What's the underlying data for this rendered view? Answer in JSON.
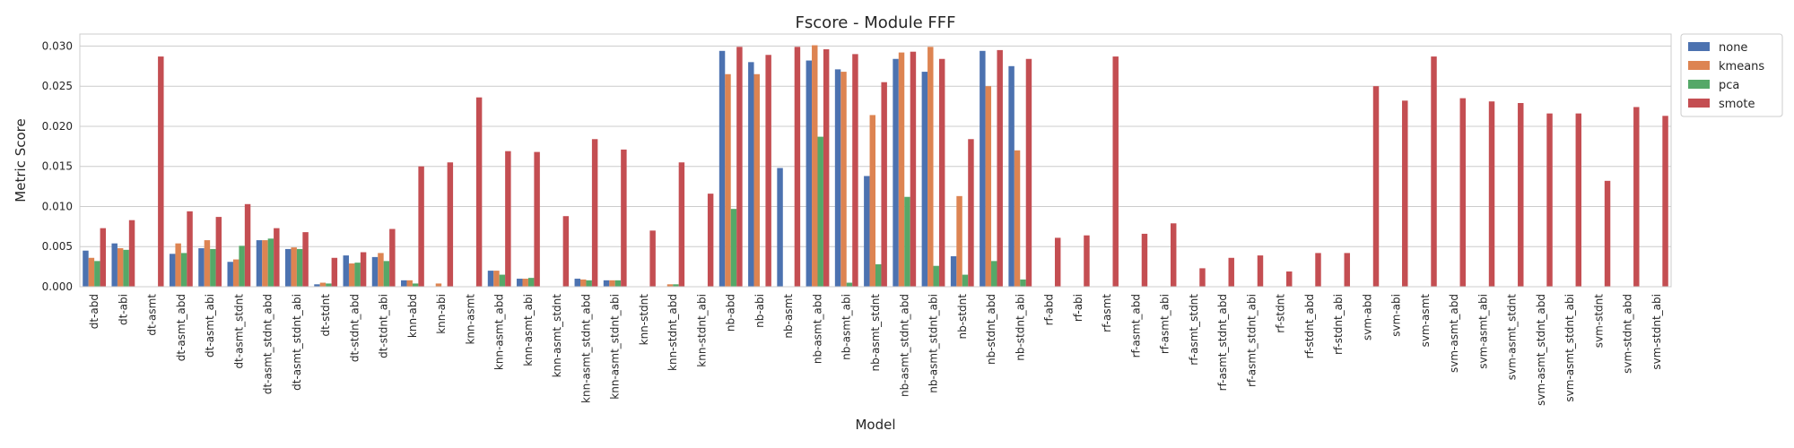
{
  "chart_data": {
    "type": "bar",
    "title": "Fscore - Module FFF",
    "xlabel": "Model",
    "ylabel": "Metric Score",
    "ylim": [
      0,
      0.0315
    ],
    "yticks": [
      0.0,
      0.005,
      0.01,
      0.015,
      0.02,
      0.025,
      0.03
    ],
    "ytick_labels": [
      "0.000",
      "0.005",
      "0.010",
      "0.015",
      "0.020",
      "0.025",
      "0.030"
    ],
    "grid": true,
    "legend_position": "outside-top-right",
    "categories": [
      "dt-abd",
      "dt-abi",
      "dt-asmt",
      "dt-asmt_abd",
      "dt-asmt_abi",
      "dt-asmt_stdnt",
      "dt-asmt_stdnt_abd",
      "dt-asmt_stdnt_abi",
      "dt-stdnt",
      "dt-stdnt_abd",
      "dt-stdnt_abi",
      "knn-abd",
      "knn-abi",
      "knn-asmt",
      "knn-asmt_abd",
      "knn-asmt_abi",
      "knn-asmt_stdnt",
      "knn-asmt_stdnt_abd",
      "knn-asmt_stdnt_abi",
      "knn-stdnt",
      "knn-stdnt_abd",
      "knn-stdnt_abi",
      "nb-abd",
      "nb-abi",
      "nb-asmt",
      "nb-asmt_abd",
      "nb-asmt_abi",
      "nb-asmt_stdnt",
      "nb-asmt_stdnt_abd",
      "nb-asmt_stdnt_abi",
      "nb-stdnt",
      "nb-stdnt_abd",
      "nb-stdnt_abi",
      "rf-abd",
      "rf-abi",
      "rf-asmt",
      "rf-asmt_abd",
      "rf-asmt_abi",
      "rf-asmt_stdnt",
      "rf-asmt_stdnt_abd",
      "rf-asmt_stdnt_abi",
      "rf-stdnt",
      "rf-stdnt_abd",
      "rf-stdnt_abi",
      "svm-abd",
      "svm-abi",
      "svm-asmt",
      "svm-asmt_abd",
      "svm-asmt_abi",
      "svm-asmt_stdnt",
      "svm-asmt_stdnt_abd",
      "svm-asmt_stdnt_abi",
      "svm-stdnt",
      "svm-stdnt_abd",
      "svm-stdnt_abi"
    ],
    "series": [
      {
        "name": "none",
        "color": "#4c72b0",
        "values": [
          0.0045,
          0.0054,
          0,
          0.0041,
          0.0048,
          0.0031,
          0.0058,
          0.0047,
          0.0003,
          0.0039,
          0.0037,
          0.0008,
          0,
          0,
          0.002,
          0.001,
          0,
          0.001,
          0.0008,
          0,
          0,
          0,
          0.0294,
          0.028,
          0.0148,
          0.0282,
          0.0271,
          0.0138,
          0.0284,
          0.0268,
          0.0038,
          0.0294,
          0.0275,
          0,
          0,
          0,
          0,
          0,
          0,
          0,
          0,
          0,
          0,
          0,
          0,
          0,
          0,
          0,
          0,
          0,
          0,
          0,
          0,
          0,
          0
        ]
      },
      {
        "name": "kmeans",
        "color": "#dd8452",
        "values": [
          0.0036,
          0.0048,
          0,
          0.0054,
          0.0058,
          0.0034,
          0.0058,
          0.0049,
          0.0005,
          0.0029,
          0.0042,
          0.0008,
          0.0004,
          0,
          0.002,
          0.001,
          0,
          0.0009,
          0.0008,
          0,
          0.0003,
          0,
          0.0265,
          0.0265,
          0,
          0.0301,
          0.0268,
          0.0214,
          0.0292,
          0.0299,
          0.0113,
          0.025,
          0.017,
          0,
          0,
          0,
          0,
          0,
          0,
          0,
          0,
          0,
          0,
          0,
          0,
          0,
          0,
          0,
          0,
          0,
          0,
          0,
          0,
          0,
          0
        ]
      },
      {
        "name": "pca",
        "color": "#55a868",
        "values": [
          0.0032,
          0.0046,
          0,
          0.0042,
          0.0047,
          0.0051,
          0.006,
          0.0047,
          0.0004,
          0.003,
          0.0032,
          0.0004,
          0,
          0,
          0.0015,
          0.0011,
          0,
          0.0008,
          0.0008,
          0,
          0.0003,
          0,
          0.0097,
          0,
          0,
          0.0187,
          0.0005,
          0.0028,
          0.0112,
          0.0026,
          0.0015,
          0.0032,
          0.0009,
          0,
          0,
          0,
          0,
          0,
          0,
          0,
          0,
          0,
          0,
          0,
          0,
          0,
          0,
          0,
          0,
          0,
          0,
          0,
          0,
          0,
          0
        ]
      },
      {
        "name": "smote",
        "color": "#c44e52",
        "values": [
          0.0073,
          0.0083,
          0.0287,
          0.0094,
          0.0087,
          0.0103,
          0.0073,
          0.0068,
          0.0036,
          0.0043,
          0.0072,
          0.015,
          0.0155,
          0.0236,
          0.0169,
          0.0168,
          0.0088,
          0.0184,
          0.0171,
          0.007,
          0.0155,
          0.0116,
          0.0299,
          0.0289,
          0.0299,
          0.0296,
          0.029,
          0.0255,
          0.0293,
          0.0284,
          0.0184,
          0.0295,
          0.0284,
          0.0061,
          0.0064,
          0.0287,
          0.0066,
          0.0079,
          0.0023,
          0.0036,
          0.0039,
          0.0019,
          0.0042,
          0.0042,
          0.025,
          0.0232,
          0.0287,
          0.0235,
          0.0231,
          0.0229,
          0.0216,
          0.0216,
          0.0132,
          0.0224,
          0.0213
        ]
      }
    ]
  }
}
